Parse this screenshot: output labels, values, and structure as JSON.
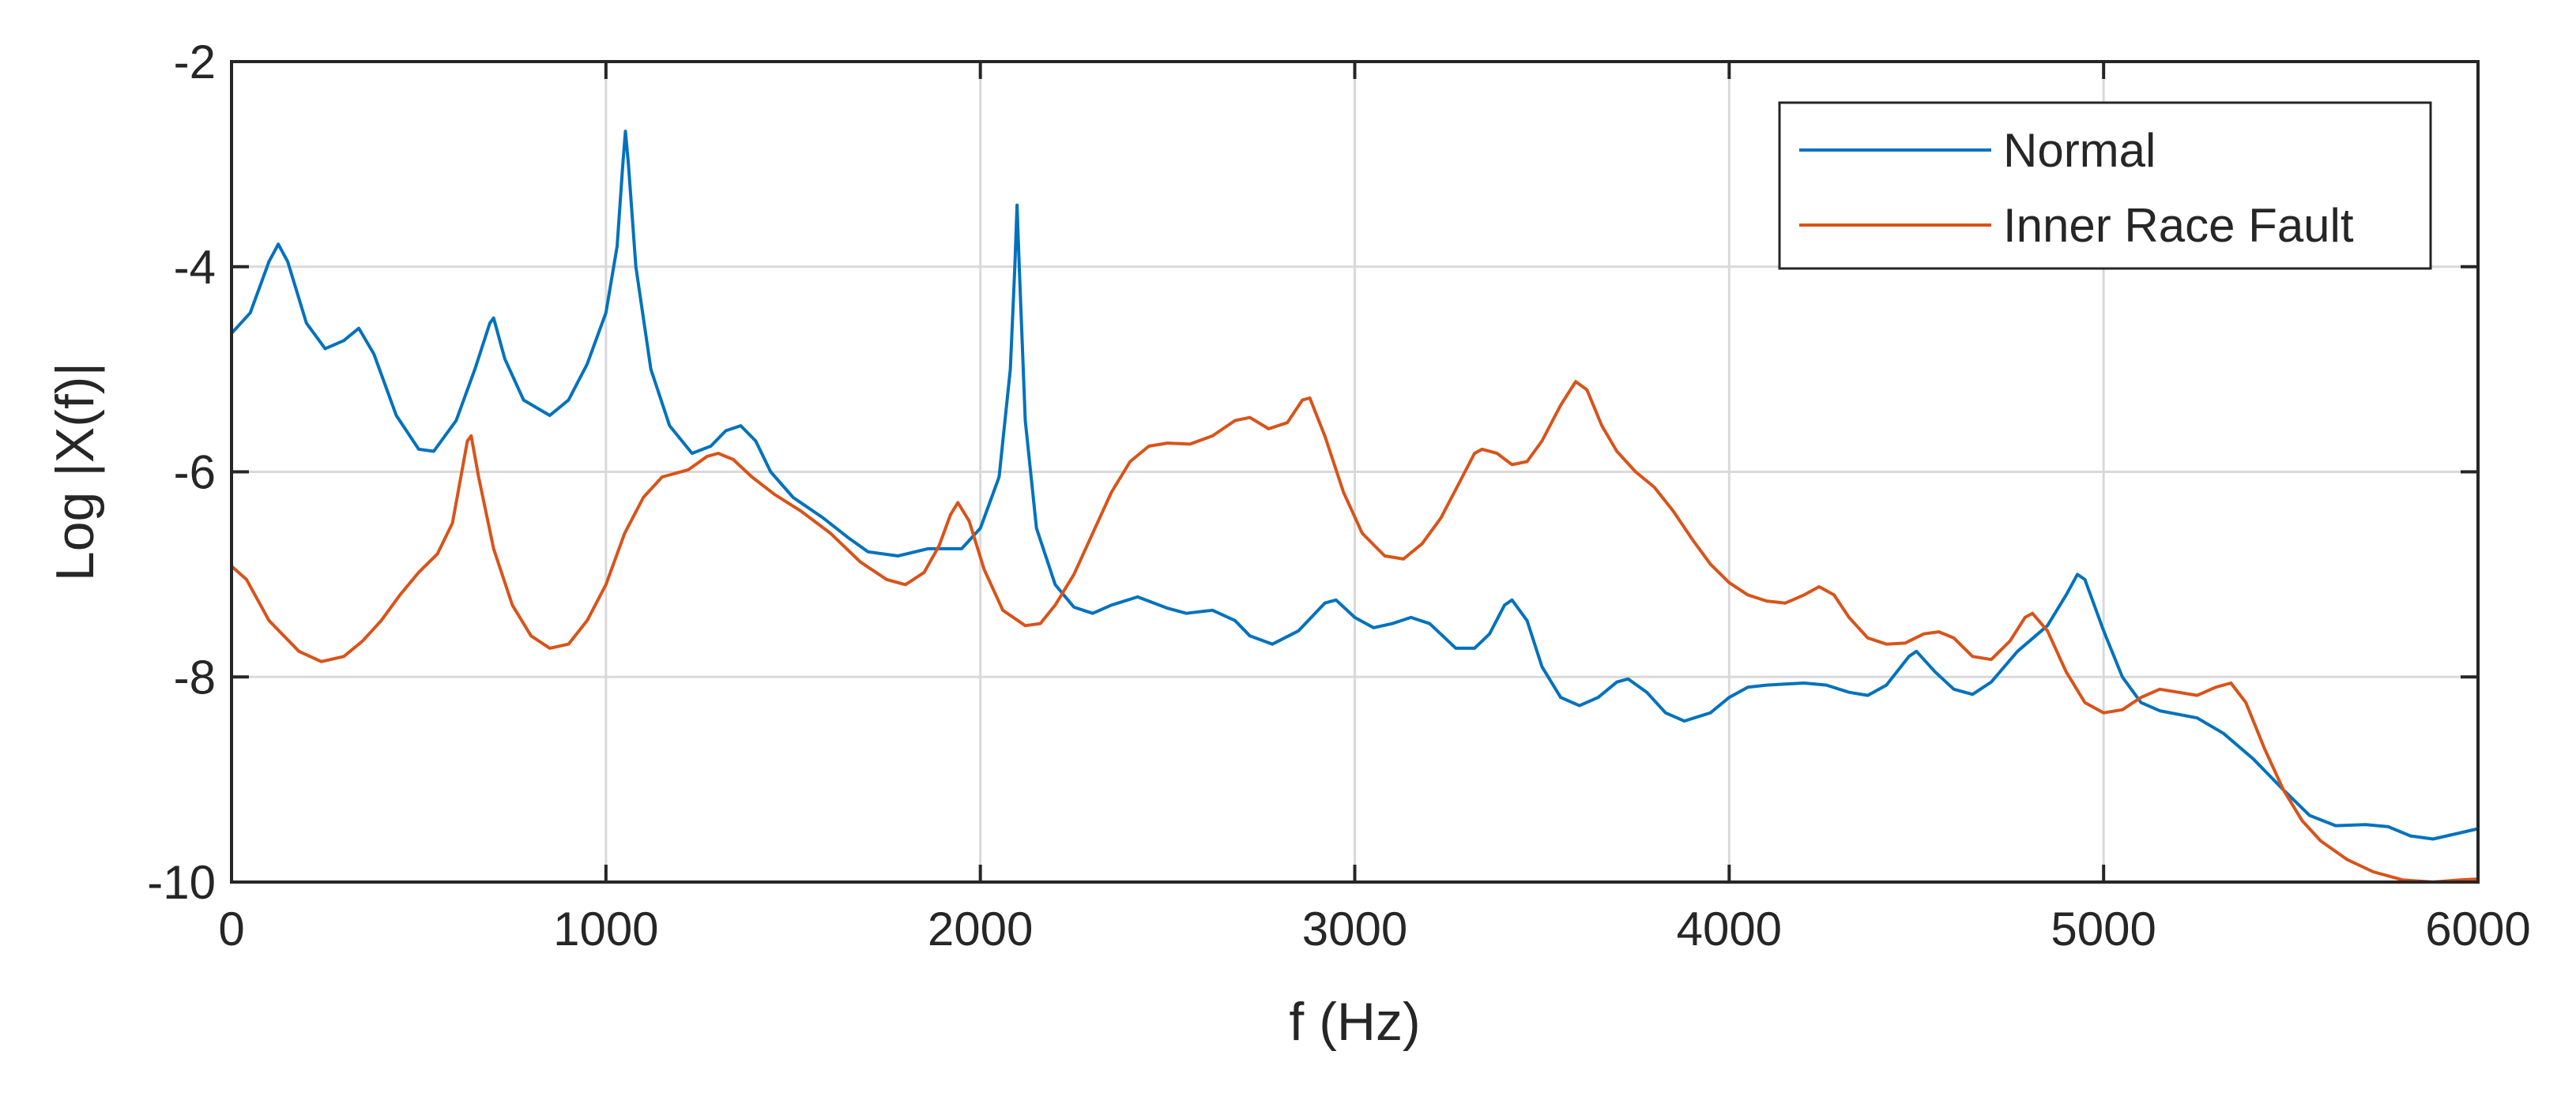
{
  "chart_data": {
    "type": "line",
    "title": "",
    "xlabel": "f (Hz)",
    "ylabel": "Log |X(f)|",
    "xlim": [
      0,
      6000
    ],
    "ylim": [
      -10,
      -2
    ],
    "xticks": [
      0,
      1000,
      2000,
      3000,
      4000,
      5000,
      6000
    ],
    "yticks": [
      -10,
      -8,
      -6,
      -4,
      -2
    ],
    "xtick_labels": [
      "0",
      "1000",
      "2000",
      "3000",
      "4000",
      "5000",
      "6000"
    ],
    "ytick_labels": [
      "-10",
      "-8",
      "-6",
      "-4",
      "-2"
    ],
    "grid": true,
    "legend_position": "top-right",
    "series": [
      {
        "name": "Normal",
        "color": "#0072BD",
        "points": [
          [
            0,
            -4.65
          ],
          [
            50,
            -4.45
          ],
          [
            100,
            -3.95
          ],
          [
            125,
            -3.78
          ],
          [
            150,
            -3.95
          ],
          [
            200,
            -4.55
          ],
          [
            250,
            -4.8
          ],
          [
            300,
            -4.72
          ],
          [
            340,
            -4.6
          ],
          [
            380,
            -4.85
          ],
          [
            440,
            -5.45
          ],
          [
            500,
            -5.78
          ],
          [
            540,
            -5.8
          ],
          [
            600,
            -5.5
          ],
          [
            650,
            -5.0
          ],
          [
            690,
            -4.55
          ],
          [
            700,
            -4.5
          ],
          [
            730,
            -4.9
          ],
          [
            780,
            -5.3
          ],
          [
            850,
            -5.45
          ],
          [
            900,
            -5.3
          ],
          [
            950,
            -4.95
          ],
          [
            1000,
            -4.45
          ],
          [
            1030,
            -3.8
          ],
          [
            1045,
            -3.0
          ],
          [
            1052,
            -2.68
          ],
          [
            1060,
            -3.0
          ],
          [
            1080,
            -4.0
          ],
          [
            1120,
            -5.0
          ],
          [
            1170,
            -5.55
          ],
          [
            1230,
            -5.82
          ],
          [
            1280,
            -5.75
          ],
          [
            1320,
            -5.6
          ],
          [
            1360,
            -5.55
          ],
          [
            1400,
            -5.7
          ],
          [
            1440,
            -6.0
          ],
          [
            1500,
            -6.25
          ],
          [
            1580,
            -6.45
          ],
          [
            1650,
            -6.65
          ],
          [
            1700,
            -6.78
          ],
          [
            1780,
            -6.82
          ],
          [
            1860,
            -6.75
          ],
          [
            1950,
            -6.75
          ],
          [
            2000,
            -6.55
          ],
          [
            2050,
            -6.05
          ],
          [
            2080,
            -5.0
          ],
          [
            2092,
            -4.0
          ],
          [
            2098,
            -3.4
          ],
          [
            2104,
            -4.0
          ],
          [
            2120,
            -5.5
          ],
          [
            2150,
            -6.55
          ],
          [
            2200,
            -7.1
          ],
          [
            2250,
            -7.32
          ],
          [
            2300,
            -7.38
          ],
          [
            2350,
            -7.3
          ],
          [
            2420,
            -7.22
          ],
          [
            2500,
            -7.33
          ],
          [
            2550,
            -7.38
          ],
          [
            2620,
            -7.35
          ],
          [
            2680,
            -7.45
          ],
          [
            2720,
            -7.6
          ],
          [
            2780,
            -7.68
          ],
          [
            2850,
            -7.55
          ],
          [
            2920,
            -7.28
          ],
          [
            2950,
            -7.25
          ],
          [
            3000,
            -7.42
          ],
          [
            3050,
            -7.52
          ],
          [
            3100,
            -7.48
          ],
          [
            3150,
            -7.42
          ],
          [
            3200,
            -7.48
          ],
          [
            3270,
            -7.72
          ],
          [
            3320,
            -7.72
          ],
          [
            3360,
            -7.58
          ],
          [
            3400,
            -7.3
          ],
          [
            3420,
            -7.25
          ],
          [
            3460,
            -7.45
          ],
          [
            3500,
            -7.9
          ],
          [
            3550,
            -8.2
          ],
          [
            3600,
            -8.28
          ],
          [
            3650,
            -8.2
          ],
          [
            3700,
            -8.05
          ],
          [
            3730,
            -8.02
          ],
          [
            3780,
            -8.15
          ],
          [
            3830,
            -8.35
          ],
          [
            3880,
            -8.43
          ],
          [
            3950,
            -8.35
          ],
          [
            4000,
            -8.2
          ],
          [
            4050,
            -8.1
          ],
          [
            4100,
            -8.08
          ],
          [
            4150,
            -8.07
          ],
          [
            4200,
            -8.06
          ],
          [
            4260,
            -8.08
          ],
          [
            4320,
            -8.15
          ],
          [
            4370,
            -8.18
          ],
          [
            4420,
            -8.08
          ],
          [
            4480,
            -7.8
          ],
          [
            4500,
            -7.75
          ],
          [
            4550,
            -7.95
          ],
          [
            4600,
            -8.12
          ],
          [
            4650,
            -8.17
          ],
          [
            4700,
            -8.05
          ],
          [
            4770,
            -7.75
          ],
          [
            4850,
            -7.5
          ],
          [
            4900,
            -7.2
          ],
          [
            4930,
            -7.0
          ],
          [
            4950,
            -7.05
          ],
          [
            5000,
            -7.55
          ],
          [
            5050,
            -8.0
          ],
          [
            5100,
            -8.25
          ],
          [
            5150,
            -8.33
          ],
          [
            5250,
            -8.4
          ],
          [
            5320,
            -8.55
          ],
          [
            5400,
            -8.8
          ],
          [
            5480,
            -9.1
          ],
          [
            5550,
            -9.35
          ],
          [
            5620,
            -9.45
          ],
          [
            5700,
            -9.44
          ],
          [
            5760,
            -9.46
          ],
          [
            5820,
            -9.55
          ],
          [
            5880,
            -9.58
          ],
          [
            5940,
            -9.53
          ],
          [
            6000,
            -9.48
          ]
        ]
      },
      {
        "name": "Inner Race Fault",
        "color": "#D95319",
        "points": [
          [
            0,
            -6.92
          ],
          [
            40,
            -7.05
          ],
          [
            100,
            -7.45
          ],
          [
            180,
            -7.75
          ],
          [
            240,
            -7.85
          ],
          [
            300,
            -7.8
          ],
          [
            350,
            -7.65
          ],
          [
            400,
            -7.45
          ],
          [
            450,
            -7.2
          ],
          [
            500,
            -6.98
          ],
          [
            550,
            -6.8
          ],
          [
            590,
            -6.5
          ],
          [
            615,
            -6.0
          ],
          [
            630,
            -5.7
          ],
          [
            640,
            -5.65
          ],
          [
            660,
            -6.05
          ],
          [
            700,
            -6.75
          ],
          [
            750,
            -7.3
          ],
          [
            800,
            -7.6
          ],
          [
            850,
            -7.72
          ],
          [
            900,
            -7.68
          ],
          [
            950,
            -7.45
          ],
          [
            1000,
            -7.1
          ],
          [
            1050,
            -6.6
          ],
          [
            1100,
            -6.25
          ],
          [
            1150,
            -6.05
          ],
          [
            1220,
            -5.98
          ],
          [
            1270,
            -5.85
          ],
          [
            1300,
            -5.82
          ],
          [
            1340,
            -5.88
          ],
          [
            1390,
            -6.05
          ],
          [
            1450,
            -6.22
          ],
          [
            1520,
            -6.38
          ],
          [
            1600,
            -6.6
          ],
          [
            1680,
            -6.88
          ],
          [
            1750,
            -7.05
          ],
          [
            1800,
            -7.1
          ],
          [
            1850,
            -6.98
          ],
          [
            1890,
            -6.72
          ],
          [
            1920,
            -6.42
          ],
          [
            1940,
            -6.3
          ],
          [
            1970,
            -6.48
          ],
          [
            2010,
            -6.95
          ],
          [
            2060,
            -7.35
          ],
          [
            2120,
            -7.5
          ],
          [
            2160,
            -7.48
          ],
          [
            2200,
            -7.3
          ],
          [
            2250,
            -7.0
          ],
          [
            2300,
            -6.6
          ],
          [
            2350,
            -6.2
          ],
          [
            2400,
            -5.9
          ],
          [
            2450,
            -5.75
          ],
          [
            2500,
            -5.72
          ],
          [
            2560,
            -5.73
          ],
          [
            2620,
            -5.65
          ],
          [
            2680,
            -5.5
          ],
          [
            2720,
            -5.47
          ],
          [
            2770,
            -5.58
          ],
          [
            2820,
            -5.52
          ],
          [
            2860,
            -5.3
          ],
          [
            2880,
            -5.28
          ],
          [
            2920,
            -5.65
          ],
          [
            2970,
            -6.2
          ],
          [
            3020,
            -6.6
          ],
          [
            3080,
            -6.82
          ],
          [
            3130,
            -6.85
          ],
          [
            3180,
            -6.7
          ],
          [
            3230,
            -6.45
          ],
          [
            3280,
            -6.1
          ],
          [
            3320,
            -5.82
          ],
          [
            3340,
            -5.78
          ],
          [
            3380,
            -5.82
          ],
          [
            3420,
            -5.93
          ],
          [
            3460,
            -5.9
          ],
          [
            3500,
            -5.7
          ],
          [
            3550,
            -5.35
          ],
          [
            3590,
            -5.12
          ],
          [
            3620,
            -5.2
          ],
          [
            3660,
            -5.55
          ],
          [
            3700,
            -5.8
          ],
          [
            3750,
            -6.0
          ],
          [
            3800,
            -6.15
          ],
          [
            3850,
            -6.38
          ],
          [
            3900,
            -6.65
          ],
          [
            3950,
            -6.9
          ],
          [
            4000,
            -7.08
          ],
          [
            4050,
            -7.2
          ],
          [
            4100,
            -7.26
          ],
          [
            4150,
            -7.28
          ],
          [
            4200,
            -7.2
          ],
          [
            4240,
            -7.12
          ],
          [
            4280,
            -7.2
          ],
          [
            4320,
            -7.42
          ],
          [
            4370,
            -7.62
          ],
          [
            4420,
            -7.68
          ],
          [
            4470,
            -7.67
          ],
          [
            4520,
            -7.58
          ],
          [
            4560,
            -7.56
          ],
          [
            4600,
            -7.62
          ],
          [
            4650,
            -7.8
          ],
          [
            4700,
            -7.83
          ],
          [
            4750,
            -7.65
          ],
          [
            4790,
            -7.42
          ],
          [
            4810,
            -7.38
          ],
          [
            4850,
            -7.55
          ],
          [
            4900,
            -7.95
          ],
          [
            4950,
            -8.25
          ],
          [
            5000,
            -8.35
          ],
          [
            5050,
            -8.32
          ],
          [
            5100,
            -8.2
          ],
          [
            5150,
            -8.12
          ],
          [
            5200,
            -8.15
          ],
          [
            5250,
            -8.18
          ],
          [
            5300,
            -8.1
          ],
          [
            5340,
            -8.06
          ],
          [
            5380,
            -8.25
          ],
          [
            5430,
            -8.7
          ],
          [
            5480,
            -9.1
          ],
          [
            5530,
            -9.4
          ],
          [
            5580,
            -9.6
          ],
          [
            5650,
            -9.78
          ],
          [
            5720,
            -9.9
          ],
          [
            5800,
            -9.98
          ],
          [
            5880,
            -10.0
          ],
          [
            5950,
            -9.98
          ],
          [
            6000,
            -9.97
          ]
        ]
      }
    ]
  }
}
